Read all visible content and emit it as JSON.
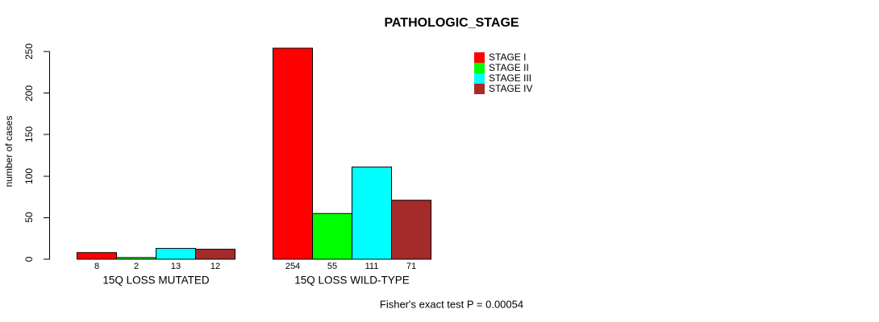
{
  "chart_data": {
    "type": "bar",
    "title": "PATHOLOGIC_STAGE",
    "ylabel": "number of cases",
    "xlabel": "",
    "ylim": [
      0,
      250
    ],
    "yticks": [
      0,
      50,
      100,
      150,
      200,
      250
    ],
    "grid": false,
    "legend_position": "top-right",
    "categories": [
      "15Q LOSS MUTATED",
      "15Q LOSS WILD-TYPE"
    ],
    "series": [
      {
        "name": "STAGE I",
        "color": "#ff0000",
        "values": [
          8,
          254
        ]
      },
      {
        "name": "STAGE II",
        "color": "#00ff00",
        "values": [
          2,
          55
        ]
      },
      {
        "name": "STAGE III",
        "color": "#00ffff",
        "values": [
          13,
          111
        ]
      },
      {
        "name": "STAGE IV",
        "color": "#a52a2a",
        "values": [
          12,
          71
        ]
      }
    ],
    "bar_value_labels_shown": true,
    "annotation": "Fisher's exact test P = 0.00054",
    "axis_color": "#000000",
    "background_color": "#ffffff"
  }
}
